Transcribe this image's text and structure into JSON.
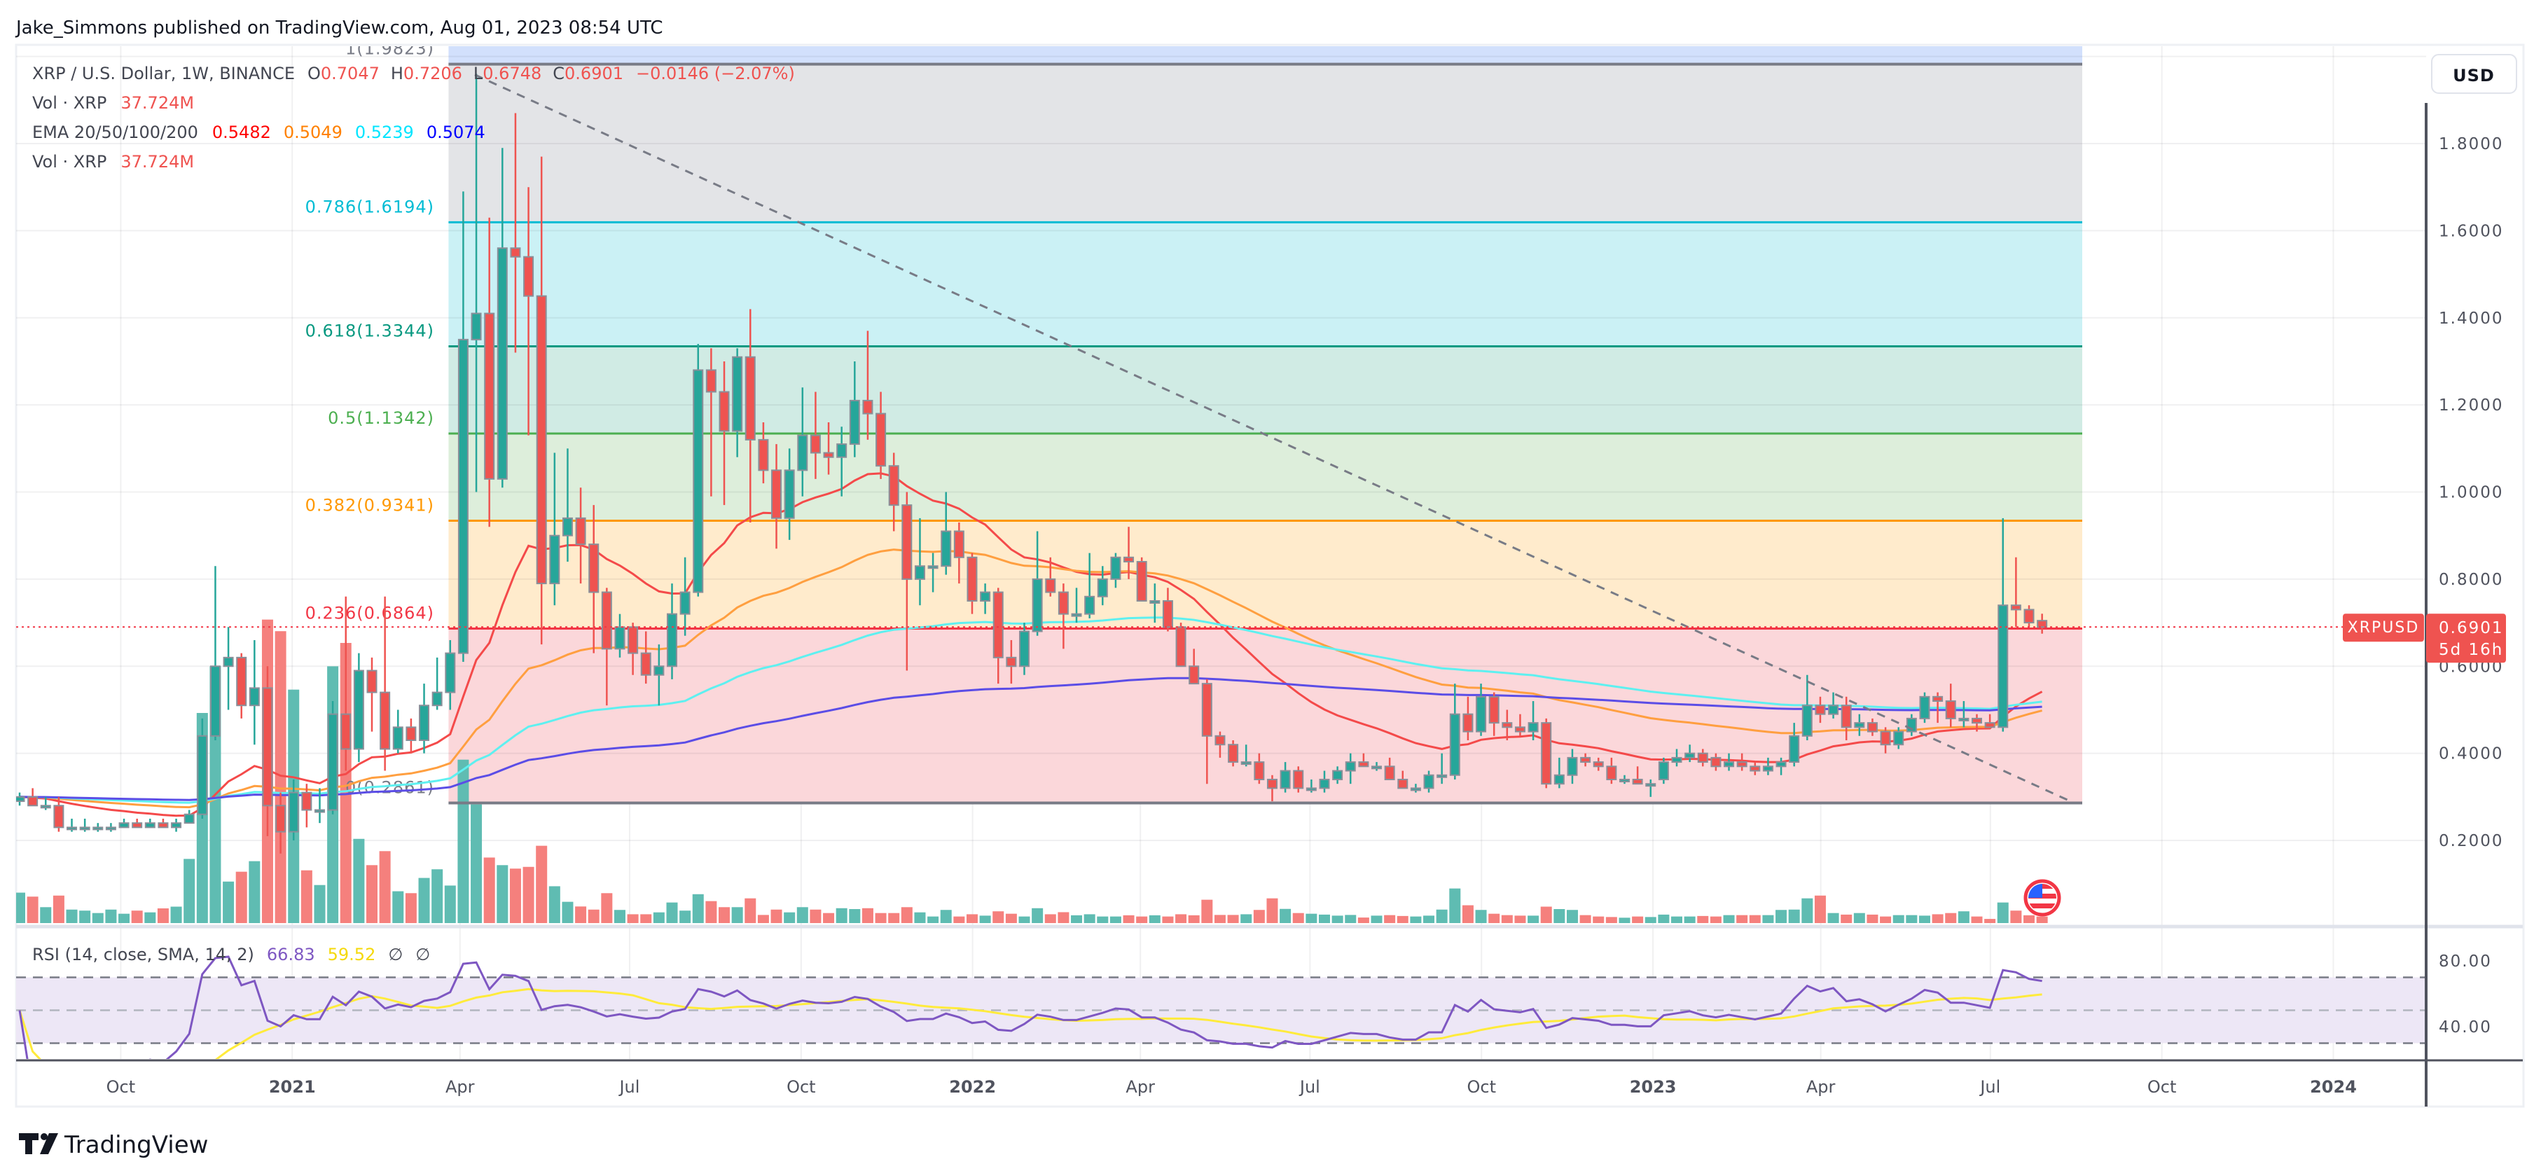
{
  "header": {
    "published": "Jake_Simmons published on TradingView.com, Aug 01, 2023 08:54 UTC"
  },
  "legend": {
    "symbol": "XRP / U.S. Dollar, 1W, BINANCE",
    "o_label": "O",
    "o": "0.7047",
    "h_label": "H",
    "h": "0.7206",
    "l_label": "L",
    "l": "0.6748",
    "c_label": "C",
    "c": "0.6901",
    "change": "−0.0146 (−2.07%)",
    "vol_label": "Vol · XRP",
    "vol": "37.724M",
    "ema_label": "EMA 20/50/100/200",
    "ema_values": [
      "0.5482",
      "0.5049",
      "0.5239",
      "0.5074"
    ],
    "vol2_label": "Vol · XRP",
    "vol2": "37.724M"
  },
  "rsi_legend": {
    "label": "RSI (14, close, SMA, 14, 2)",
    "rsi": "66.83",
    "sma": "59.52",
    "extra1": "∅",
    "extra2": "∅"
  },
  "price_axis": {
    "currency": "USD",
    "ticks": [
      {
        "text": "1.8000",
        "value": 1.8
      },
      {
        "text": "1.6000",
        "value": 1.6
      },
      {
        "text": "1.4000",
        "value": 1.4
      },
      {
        "text": "1.2000",
        "value": 1.2
      },
      {
        "text": "1.0000",
        "value": 1.0
      },
      {
        "text": "0.8000",
        "value": 0.8
      },
      {
        "text": "0.6000",
        "value": 0.6
      },
      {
        "text": "0.4000",
        "value": 0.4
      },
      {
        "text": "0.2000",
        "value": 0.2
      }
    ]
  },
  "rsi_axis": {
    "ticks": [
      {
        "text": "80.00",
        "value": 80
      },
      {
        "text": "40.00",
        "value": 40
      }
    ],
    "bands": [
      70,
      50,
      30
    ]
  },
  "time_axis": {
    "labels": [
      {
        "text": "Oct",
        "date": "2020-10-01",
        "bold": false
      },
      {
        "text": "2021",
        "date": "2021-01-01",
        "bold": true
      },
      {
        "text": "Apr",
        "date": "2021-04-01",
        "bold": false
      },
      {
        "text": "Jul",
        "date": "2021-07-01",
        "bold": false
      },
      {
        "text": "Oct",
        "date": "2021-10-01",
        "bold": false
      },
      {
        "text": "2022",
        "date": "2022-01-01",
        "bold": true
      },
      {
        "text": "Apr",
        "date": "2022-04-01",
        "bold": false
      },
      {
        "text": "Jul",
        "date": "2022-07-01",
        "bold": false
      },
      {
        "text": "Oct",
        "date": "2022-10-01",
        "bold": false
      },
      {
        "text": "2023",
        "date": "2023-01-01",
        "bold": true
      },
      {
        "text": "Apr",
        "date": "2023-04-01",
        "bold": false
      },
      {
        "text": "Jul",
        "date": "2023-07-01",
        "bold": false
      },
      {
        "text": "Oct",
        "date": "2023-10-01",
        "bold": false
      },
      {
        "text": "2024",
        "date": "2024-01-01",
        "bold": true
      }
    ]
  },
  "last_price": {
    "symbol": "XRPUSD",
    "price": "0.6901",
    "value": 0.6901,
    "countdown": "5d 16h"
  },
  "fib": {
    "levels": [
      {
        "ratio": 1,
        "price": 1.9823,
        "label": "1(1.9823)",
        "color": "#787b86",
        "fill": "#e3e4e7"
      },
      {
        "ratio": 0.786,
        "price": 1.6194,
        "label": "0.786(1.6194)",
        "color": "#00bcd4",
        "fill": "#cbf1f5"
      },
      {
        "ratio": 0.618,
        "price": 1.3344,
        "label": "0.618(1.3344)",
        "color": "#089981",
        "fill": "#d0ebe4"
      },
      {
        "ratio": 0.5,
        "price": 1.1342,
        "label": "0.5(1.1342)",
        "color": "#4caf50",
        "fill": "#ddeedb"
      },
      {
        "ratio": 0.382,
        "price": 0.9341,
        "label": "0.382(0.9341)",
        "color": "#ff9800",
        "fill": "#ffebcc"
      },
      {
        "ratio": 0.236,
        "price": 0.6864,
        "label": "0.236(0.6864)",
        "color": "#f23645",
        "fill": "#fbd7da"
      },
      {
        "ratio": 0,
        "price": 0.2861,
        "label": "0(0.2861)",
        "color": "#787b86",
        "fill": null
      }
    ],
    "extension_fill": "#d2e0fc",
    "start_date": "2021-04-05"
  },
  "trendline": {
    "start": {
      "date": "2021-04-09",
      "price": 1.958
    },
    "end": {
      "date": "2023-08-14",
      "price": 0.288
    },
    "color": "#787b86"
  },
  "colors": {
    "up": "#26a69a",
    "down": "#ef5350",
    "vol_up": "#5fbcb2",
    "vol_down": "#f5807d",
    "ema20": "#f44a4a",
    "ema50": "#ff9f40",
    "ema100": "#5ef0f0",
    "ema200": "#5b4de6",
    "ema20_legend": "#ff0000",
    "ema50_legend": "#ff8000",
    "ema100_legend": "#00e5ff",
    "ema200_legend": "#0000ff",
    "rsi": "#7e57c2",
    "rsi_sma": "#ffeb3b",
    "rsi_band": "#ede7f6"
  },
  "icons": {
    "flag": "us-flag-icon",
    "logo": "tradingview-logo-icon"
  },
  "logo": "TradingView",
  "chart_data": {
    "type": "candlestick",
    "interval": "1W",
    "ohlc_order": [
      "open",
      "high",
      "low",
      "close"
    ],
    "candles": [
      [
        0.29,
        0.31,
        0.28,
        0.3
      ],
      [
        0.3,
        0.32,
        0.28,
        0.28
      ],
      [
        0.28,
        0.3,
        0.27,
        0.28
      ],
      [
        0.28,
        0.3,
        0.22,
        0.23
      ],
      [
        0.23,
        0.25,
        0.22,
        0.23
      ],
      [
        0.23,
        0.25,
        0.22,
        0.23
      ],
      [
        0.23,
        0.24,
        0.22,
        0.23
      ],
      [
        0.23,
        0.24,
        0.22,
        0.23
      ],
      [
        0.23,
        0.25,
        0.23,
        0.24
      ],
      [
        0.24,
        0.25,
        0.23,
        0.23
      ],
      [
        0.23,
        0.25,
        0.23,
        0.24
      ],
      [
        0.24,
        0.25,
        0.23,
        0.23
      ],
      [
        0.23,
        0.25,
        0.22,
        0.24
      ],
      [
        0.24,
        0.27,
        0.24,
        0.26
      ],
      [
        0.26,
        0.48,
        0.25,
        0.44
      ],
      [
        0.44,
        0.83,
        0.43,
        0.6
      ],
      [
        0.6,
        0.69,
        0.5,
        0.62
      ],
      [
        0.62,
        0.63,
        0.48,
        0.51
      ],
      [
        0.51,
        0.66,
        0.42,
        0.55
      ],
      [
        0.55,
        0.6,
        0.21,
        0.28
      ],
      [
        0.28,
        0.31,
        0.17,
        0.22
      ],
      [
        0.22,
        0.34,
        0.2,
        0.31
      ],
      [
        0.31,
        0.33,
        0.23,
        0.27
      ],
      [
        0.27,
        0.32,
        0.24,
        0.27
      ],
      [
        0.27,
        0.52,
        0.26,
        0.49
      ],
      [
        0.49,
        0.76,
        0.36,
        0.41
      ],
      [
        0.41,
        0.63,
        0.38,
        0.59
      ],
      [
        0.59,
        0.62,
        0.45,
        0.54
      ],
      [
        0.54,
        0.76,
        0.36,
        0.41
      ],
      [
        0.41,
        0.5,
        0.4,
        0.46
      ],
      [
        0.46,
        0.48,
        0.4,
        0.43
      ],
      [
        0.43,
        0.56,
        0.4,
        0.51
      ],
      [
        0.51,
        0.62,
        0.5,
        0.54
      ],
      [
        0.54,
        0.66,
        0.5,
        0.63
      ],
      [
        0.63,
        1.69,
        0.61,
        1.35
      ],
      [
        1.35,
        1.96,
        1.0,
        1.41
      ],
      [
        1.41,
        1.63,
        0.92,
        1.03
      ],
      [
        1.03,
        1.79,
        1.01,
        1.56
      ],
      [
        1.56,
        1.87,
        1.32,
        1.54
      ],
      [
        1.54,
        1.7,
        1.13,
        1.45
      ],
      [
        1.45,
        1.77,
        0.65,
        0.79
      ],
      [
        0.79,
        1.09,
        0.74,
        0.9
      ],
      [
        0.9,
        1.1,
        0.84,
        0.94
      ],
      [
        0.94,
        1.01,
        0.79,
        0.88
      ],
      [
        0.88,
        0.97,
        0.63,
        0.77
      ],
      [
        0.77,
        0.78,
        0.51,
        0.64
      ],
      [
        0.64,
        0.72,
        0.62,
        0.69
      ],
      [
        0.69,
        0.7,
        0.58,
        0.63
      ],
      [
        0.63,
        0.68,
        0.56,
        0.58
      ],
      [
        0.58,
        0.65,
        0.51,
        0.6
      ],
      [
        0.6,
        0.79,
        0.57,
        0.72
      ],
      [
        0.72,
        0.85,
        0.67,
        0.77
      ],
      [
        0.77,
        1.34,
        0.76,
        1.28
      ],
      [
        1.28,
        1.33,
        0.99,
        1.23
      ],
      [
        1.23,
        1.3,
        0.97,
        1.14
      ],
      [
        1.14,
        1.33,
        1.08,
        1.31
      ],
      [
        1.31,
        1.42,
        0.93,
        1.12
      ],
      [
        1.12,
        1.16,
        1.02,
        1.05
      ],
      [
        1.05,
        1.11,
        0.87,
        0.94
      ],
      [
        0.94,
        1.1,
        0.89,
        1.05
      ],
      [
        1.05,
        1.24,
        0.99,
        1.13
      ],
      [
        1.13,
        1.23,
        1.03,
        1.09
      ],
      [
        1.09,
        1.16,
        1.04,
        1.08
      ],
      [
        1.08,
        1.15,
        0.99,
        1.11
      ],
      [
        1.11,
        1.3,
        1.08,
        1.21
      ],
      [
        1.21,
        1.37,
        1.12,
        1.18
      ],
      [
        1.18,
        1.23,
        1.03,
        1.06
      ],
      [
        1.06,
        1.09,
        0.91,
        0.97
      ],
      [
        0.97,
        1.0,
        0.59,
        0.8
      ],
      [
        0.8,
        0.94,
        0.74,
        0.83
      ],
      [
        0.83,
        0.86,
        0.77,
        0.83
      ],
      [
        0.83,
        1.0,
        0.81,
        0.91
      ],
      [
        0.91,
        0.93,
        0.79,
        0.85
      ],
      [
        0.85,
        0.86,
        0.72,
        0.75
      ],
      [
        0.75,
        0.79,
        0.72,
        0.77
      ],
      [
        0.77,
        0.78,
        0.56,
        0.62
      ],
      [
        0.62,
        0.66,
        0.56,
        0.6
      ],
      [
        0.6,
        0.7,
        0.58,
        0.68
      ],
      [
        0.68,
        0.91,
        0.67,
        0.8
      ],
      [
        0.8,
        0.85,
        0.76,
        0.77
      ],
      [
        0.77,
        0.79,
        0.64,
        0.72
      ],
      [
        0.72,
        0.78,
        0.7,
        0.72
      ],
      [
        0.72,
        0.86,
        0.71,
        0.76
      ],
      [
        0.76,
        0.83,
        0.74,
        0.8
      ],
      [
        0.8,
        0.86,
        0.78,
        0.85
      ],
      [
        0.85,
        0.92,
        0.8,
        0.84
      ],
      [
        0.84,
        0.85,
        0.75,
        0.75
      ],
      [
        0.75,
        0.79,
        0.7,
        0.75
      ],
      [
        0.75,
        0.78,
        0.68,
        0.69
      ],
      [
        0.69,
        0.7,
        0.6,
        0.6
      ],
      [
        0.6,
        0.64,
        0.56,
        0.56
      ],
      [
        0.56,
        0.57,
        0.33,
        0.44
      ],
      [
        0.44,
        0.45,
        0.39,
        0.42
      ],
      [
        0.42,
        0.43,
        0.37,
        0.38
      ],
      [
        0.38,
        0.42,
        0.37,
        0.38
      ],
      [
        0.38,
        0.4,
        0.33,
        0.34
      ],
      [
        0.34,
        0.35,
        0.29,
        0.32
      ],
      [
        0.32,
        0.38,
        0.31,
        0.36
      ],
      [
        0.36,
        0.37,
        0.31,
        0.32
      ],
      [
        0.32,
        0.34,
        0.31,
        0.32
      ],
      [
        0.32,
        0.36,
        0.31,
        0.34
      ],
      [
        0.34,
        0.37,
        0.33,
        0.36
      ],
      [
        0.36,
        0.4,
        0.33,
        0.38
      ],
      [
        0.38,
        0.4,
        0.37,
        0.37
      ],
      [
        0.37,
        0.38,
        0.36,
        0.37
      ],
      [
        0.37,
        0.39,
        0.34,
        0.34
      ],
      [
        0.34,
        0.36,
        0.32,
        0.32
      ],
      [
        0.32,
        0.33,
        0.31,
        0.32
      ],
      [
        0.32,
        0.36,
        0.31,
        0.35
      ],
      [
        0.35,
        0.4,
        0.33,
        0.35
      ],
      [
        0.35,
        0.56,
        0.34,
        0.49
      ],
      [
        0.49,
        0.53,
        0.43,
        0.45
      ],
      [
        0.45,
        0.56,
        0.44,
        0.53
      ],
      [
        0.53,
        0.54,
        0.44,
        0.47
      ],
      [
        0.47,
        0.5,
        0.43,
        0.46
      ],
      [
        0.46,
        0.49,
        0.44,
        0.45
      ],
      [
        0.45,
        0.52,
        0.43,
        0.47
      ],
      [
        0.47,
        0.48,
        0.32,
        0.33
      ],
      [
        0.33,
        0.39,
        0.32,
        0.35
      ],
      [
        0.35,
        0.41,
        0.33,
        0.39
      ],
      [
        0.39,
        0.4,
        0.37,
        0.38
      ],
      [
        0.38,
        0.39,
        0.36,
        0.37
      ],
      [
        0.37,
        0.39,
        0.33,
        0.34
      ],
      [
        0.34,
        0.35,
        0.33,
        0.34
      ],
      [
        0.34,
        0.37,
        0.33,
        0.33
      ],
      [
        0.33,
        0.34,
        0.3,
        0.33
      ],
      [
        0.34,
        0.39,
        0.33,
        0.38
      ],
      [
        0.38,
        0.41,
        0.37,
        0.39
      ],
      [
        0.39,
        0.42,
        0.38,
        0.4
      ],
      [
        0.4,
        0.41,
        0.37,
        0.38
      ],
      [
        0.39,
        0.4,
        0.36,
        0.37
      ],
      [
        0.37,
        0.4,
        0.36,
        0.38
      ],
      [
        0.38,
        0.4,
        0.36,
        0.37
      ],
      [
        0.37,
        0.38,
        0.35,
        0.36
      ],
      [
        0.36,
        0.39,
        0.35,
        0.37
      ],
      [
        0.37,
        0.39,
        0.35,
        0.38
      ],
      [
        0.38,
        0.47,
        0.37,
        0.44
      ],
      [
        0.44,
        0.58,
        0.43,
        0.51
      ],
      [
        0.51,
        0.53,
        0.47,
        0.49
      ],
      [
        0.49,
        0.54,
        0.48,
        0.51
      ],
      [
        0.51,
        0.53,
        0.43,
        0.46
      ],
      [
        0.46,
        0.49,
        0.44,
        0.47
      ],
      [
        0.47,
        0.48,
        0.44,
        0.45
      ],
      [
        0.45,
        0.46,
        0.4,
        0.42
      ],
      [
        0.42,
        0.46,
        0.41,
        0.45
      ],
      [
        0.45,
        0.49,
        0.44,
        0.48
      ],
      [
        0.48,
        0.54,
        0.47,
        0.53
      ],
      [
        0.53,
        0.54,
        0.47,
        0.52
      ],
      [
        0.52,
        0.56,
        0.46,
        0.48
      ],
      [
        0.48,
        0.52,
        0.46,
        0.48
      ],
      [
        0.48,
        0.49,
        0.45,
        0.47
      ],
      [
        0.47,
        0.49,
        0.46,
        0.46
      ],
      [
        0.46,
        0.94,
        0.45,
        0.74
      ],
      [
        0.74,
        0.85,
        0.69,
        0.73
      ],
      [
        0.73,
        0.74,
        0.69,
        0.7
      ],
      [
        0.7047,
        0.7206,
        0.6748,
        0.6901
      ]
    ],
    "volume_millions": [
      176,
      153,
      92,
      159,
      78,
      72,
      58,
      78,
      54,
      72,
      62,
      85,
      95,
      371,
      1215,
      1485,
      240,
      297,
      358,
      1755,
      1688,
      1350,
      305,
      220,
      1485,
      1620,
      487,
      335,
      416,
      184,
      173,
      261,
      311,
      217,
      945,
      686,
      379,
      335,
      315,
      325,
      447,
      213,
      123,
      96,
      78,
      173,
      76,
      51,
      51,
      62,
      119,
      72,
      167,
      127,
      92,
      92,
      143,
      47,
      78,
      62,
      92,
      78,
      58,
      86,
      81,
      86,
      58,
      58,
      92,
      62,
      38,
      76,
      38,
      51,
      43,
      68,
      54,
      38,
      86,
      51,
      63,
      45,
      51,
      38,
      38,
      45,
      38,
      45,
      38,
      51,
      45,
      135,
      47,
      47,
      51,
      76,
      143,
      82,
      58,
      54,
      49,
      43,
      47,
      32,
      43,
      46,
      41,
      38,
      43,
      78,
      200,
      103,
      76,
      54,
      46,
      43,
      43,
      95,
      81,
      76,
      46,
      38,
      35,
      31,
      38,
      35,
      49,
      38,
      38,
      41,
      38,
      46,
      46,
      46,
      46,
      76,
      78,
      143,
      159,
      58,
      49,
      58,
      49,
      38,
      46,
      46,
      43,
      51,
      58,
      68,
      38,
      24,
      119,
      72,
      45,
      37.724
    ],
    "ema_periods": [
      20,
      50,
      100,
      200
    ],
    "rsi": {
      "period": 14,
      "source": "close",
      "ma": "SMA",
      "ma_length": 14
    },
    "ylim": [
      0.0,
      2.0
    ],
    "y_scale": "linear",
    "grid": true
  }
}
